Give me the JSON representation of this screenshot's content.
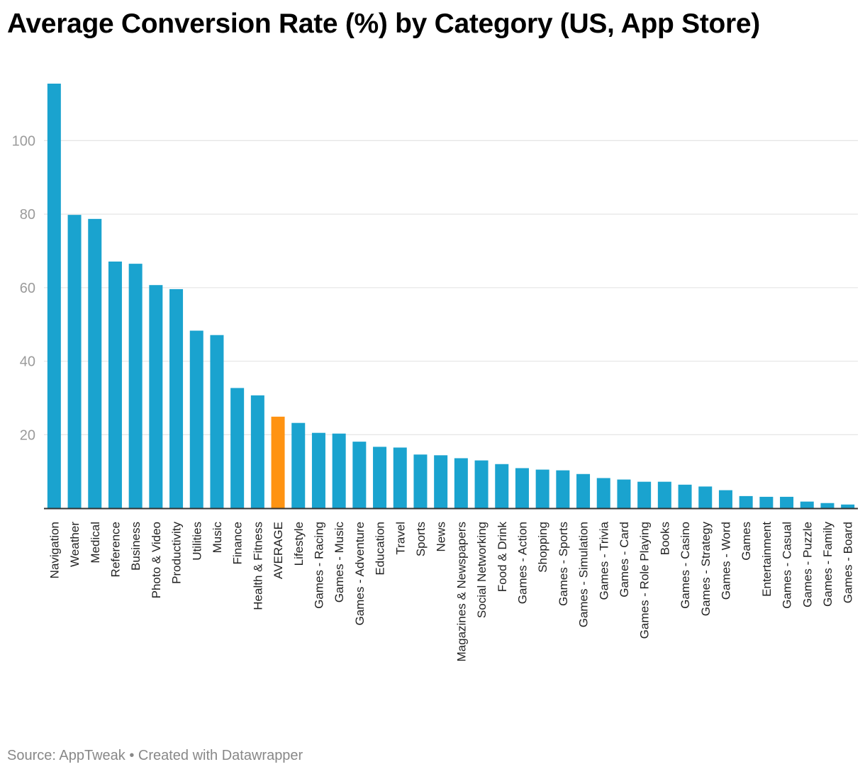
{
  "title": "Average Conversion Rate (%) by Category (US, App Store)",
  "footer": "Source: AppTweak • Created with Datawrapper",
  "chart_data": {
    "type": "bar",
    "orientation": "vertical",
    "categories": [
      "Navigation",
      "Weather",
      "Medical",
      "Reference",
      "Business",
      "Photo & Video",
      "Productivity",
      "Utilities",
      "Music",
      "Finance",
      "Health & Fitness",
      "AVERAGE",
      "Lifestyle",
      "Games - Racing",
      "Games - Music",
      "Games - Adventure",
      "Education",
      "Travel",
      "Sports",
      "News",
      "Magazines & Newspapers",
      "Social Networking",
      "Food & Drink",
      "Games - Action",
      "Shopping",
      "Games - Sports",
      "Games - Simulation",
      "Games - Trivia",
      "Games - Card",
      "Games - Role Playing",
      "Books",
      "Games - Casino",
      "Games - Strategy",
      "Games - Word",
      "Games",
      "Entertainment",
      "Games - Casual",
      "Games - Puzzle",
      "Games - Family",
      "Games - Board"
    ],
    "values": [
      115.5,
      79.8,
      78.7,
      67.1,
      66.5,
      60.7,
      59.6,
      48.3,
      47.1,
      32.7,
      30.7,
      24.9,
      23.2,
      20.5,
      20.3,
      18.1,
      16.7,
      16.5,
      14.6,
      14.4,
      13.6,
      13.0,
      12.0,
      10.9,
      10.5,
      10.3,
      9.3,
      8.2,
      7.8,
      7.2,
      7.2,
      6.4,
      5.9,
      4.9,
      3.3,
      3.1,
      3.1,
      1.8,
      1.4,
      1.0
    ],
    "highlight": "AVERAGE",
    "colors": {
      "bar": "#1aa3cf",
      "highlight": "#ff9312",
      "grid": "#e5e5e5",
      "axis": "#333333",
      "tick_label": "#9b9b9b"
    },
    "y_ticks": [
      20,
      40,
      60,
      80,
      100
    ],
    "ylim": [
      0,
      115.5
    ],
    "grid": true,
    "legend": "none"
  }
}
